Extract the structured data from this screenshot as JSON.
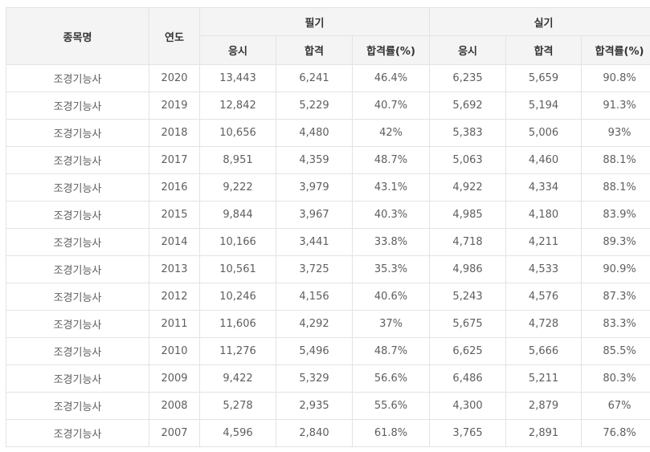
{
  "header": {
    "name": "종목명",
    "year": "연도",
    "written": "필기",
    "practical": "실기",
    "applicants": "응시",
    "passed": "합격",
    "pass_rate": "합격률(%)"
  },
  "rows": [
    {
      "name": "조경기능사",
      "year": "2020",
      "w_app": "13,443",
      "w_pass": "6,241",
      "w_rate": "46.4%",
      "p_app": "6,235",
      "p_pass": "5,659",
      "p_rate": "90.8%"
    },
    {
      "name": "조경기능사",
      "year": "2019",
      "w_app": "12,842",
      "w_pass": "5,229",
      "w_rate": "40.7%",
      "p_app": "5,692",
      "p_pass": "5,194",
      "p_rate": "91.3%"
    },
    {
      "name": "조경기능사",
      "year": "2018",
      "w_app": "10,656",
      "w_pass": "4,480",
      "w_rate": "42%",
      "p_app": "5,383",
      "p_pass": "5,006",
      "p_rate": "93%"
    },
    {
      "name": "조경기능사",
      "year": "2017",
      "w_app": "8,951",
      "w_pass": "4,359",
      "w_rate": "48.7%",
      "p_app": "5,063",
      "p_pass": "4,460",
      "p_rate": "88.1%"
    },
    {
      "name": "조경기능사",
      "year": "2016",
      "w_app": "9,222",
      "w_pass": "3,979",
      "w_rate": "43.1%",
      "p_app": "4,922",
      "p_pass": "4,334",
      "p_rate": "88.1%"
    },
    {
      "name": "조경기능사",
      "year": "2015",
      "w_app": "9,844",
      "w_pass": "3,967",
      "w_rate": "40.3%",
      "p_app": "4,985",
      "p_pass": "4,180",
      "p_rate": "83.9%"
    },
    {
      "name": "조경기능사",
      "year": "2014",
      "w_app": "10,166",
      "w_pass": "3,441",
      "w_rate": "33.8%",
      "p_app": "4,718",
      "p_pass": "4,211",
      "p_rate": "89.3%"
    },
    {
      "name": "조경기능사",
      "year": "2013",
      "w_app": "10,561",
      "w_pass": "3,725",
      "w_rate": "35.3%",
      "p_app": "4,986",
      "p_pass": "4,533",
      "p_rate": "90.9%"
    },
    {
      "name": "조경기능사",
      "year": "2012",
      "w_app": "10,246",
      "w_pass": "4,156",
      "w_rate": "40.6%",
      "p_app": "5,243",
      "p_pass": "4,576",
      "p_rate": "87.3%"
    },
    {
      "name": "조경기능사",
      "year": "2011",
      "w_app": "11,606",
      "w_pass": "4,292",
      "w_rate": "37%",
      "p_app": "5,675",
      "p_pass": "4,728",
      "p_rate": "83.3%"
    },
    {
      "name": "조경기능사",
      "year": "2010",
      "w_app": "11,276",
      "w_pass": "5,496",
      "w_rate": "48.7%",
      "p_app": "6,625",
      "p_pass": "5,666",
      "p_rate": "85.5%"
    },
    {
      "name": "조경기능사",
      "year": "2009",
      "w_app": "9,422",
      "w_pass": "5,329",
      "w_rate": "56.6%",
      "p_app": "6,486",
      "p_pass": "5,211",
      "p_rate": "80.3%"
    },
    {
      "name": "조경기능사",
      "year": "2008",
      "w_app": "5,278",
      "w_pass": "2,935",
      "w_rate": "55.6%",
      "p_app": "4,300",
      "p_pass": "2,879",
      "p_rate": "67%"
    },
    {
      "name": "조경기능사",
      "year": "2007",
      "w_app": "4,596",
      "w_pass": "2,840",
      "w_rate": "61.8%",
      "p_app": "3,765",
      "p_pass": "2,891",
      "p_rate": "76.8%"
    }
  ]
}
